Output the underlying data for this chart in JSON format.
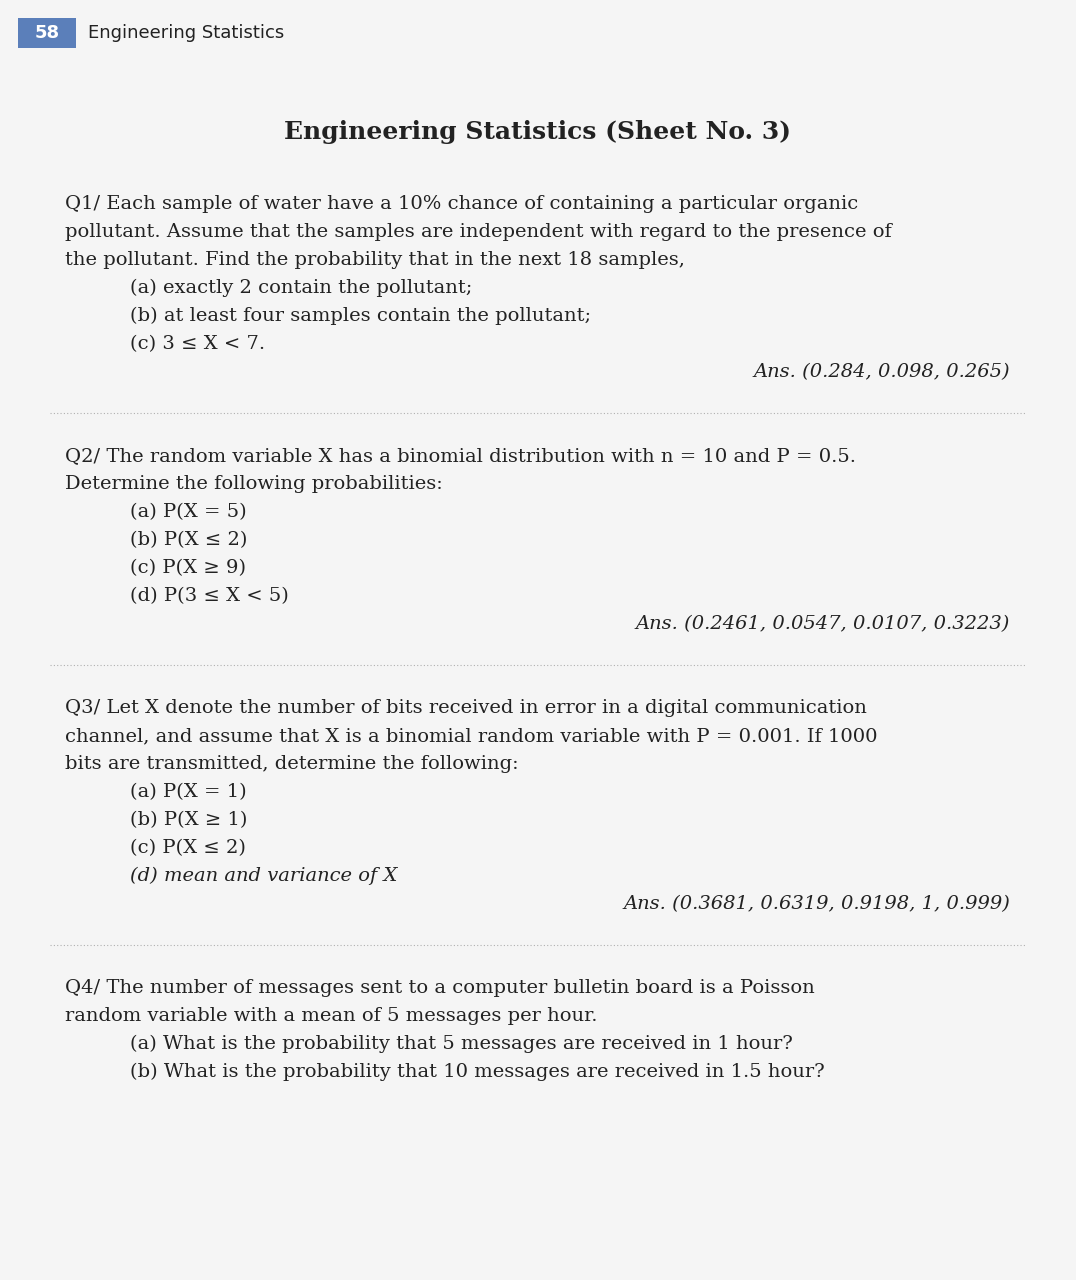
{
  "page_number": "58",
  "header_text": "Engineering Statistics",
  "header_bg_color": "#5b7fba",
  "header_text_color": "#ffffff",
  "page_bg_color": "#f5f5f5",
  "main_title": "Engineering Statistics (Sheet No. 3)",
  "questions": [
    {
      "id": "Q1",
      "body_lines": [
        "Q1/ Each sample of water have a 10% chance of containing a particular organic",
        "pollutant. Assume that the samples are independent with regard to the presence of",
        "the pollutant. Find the probability that in the next 18 samples,"
      ],
      "sub_items": [
        "    (a) exactly 2 contain the pollutant;",
        "    (b) at least four samples contain the pollutant;",
        "    (c) 3 ≤ X < 7."
      ],
      "answer": "Ans. (0.284, 0.098, 0.265)"
    },
    {
      "id": "Q2",
      "body_lines": [
        "Q2/ The random variable X has a binomial distribution with n = 10 and P = 0.5.",
        "Determine the following probabilities:"
      ],
      "sub_items": [
        "    (a) P(X = 5)",
        "    (b) P(X ≤ 2)",
        "    (c) P(X ≥ 9)",
        "    (d) P(3 ≤ X < 5)"
      ],
      "answer": "Ans. (0.2461, 0.0547, 0.0107, 0.3223)"
    },
    {
      "id": "Q3",
      "body_lines": [
        "Q3/ Let X denote the number of bits received in error in a digital communication",
        "channel, and assume that X is a binomial random variable with P = 0.001. If 1000",
        "bits are transmitted, determine the following:"
      ],
      "sub_items": [
        "    (a) P(X = 1)",
        "    (b) P(X ≥ 1)",
        "    (c) P(X ≤ 2)",
        "    (d) mean and variance of X"
      ],
      "sub_italic": [
        false,
        false,
        false,
        true
      ],
      "answer": "Ans. (0.3681, 0.6319, 0.9198, 1, 0.999)"
    },
    {
      "id": "Q4",
      "body_lines": [
        "Q4/ The number of messages sent to a computer bulletin board is a Poisson",
        "random variable with a mean of 5 messages per hour."
      ],
      "sub_items": [
        "    (a) What is the probability that 5 messages are received in 1 hour?",
        "    (b) What is the probability that 10 messages are received in 1.5 hour?"
      ],
      "answer": null
    }
  ],
  "separator_color": "#b0b0b0",
  "body_font_size": 14,
  "sub_font_size": 14,
  "ans_font_size": 14,
  "title_font_size": 18,
  "header_font_size": 13,
  "text_color": "#222222"
}
